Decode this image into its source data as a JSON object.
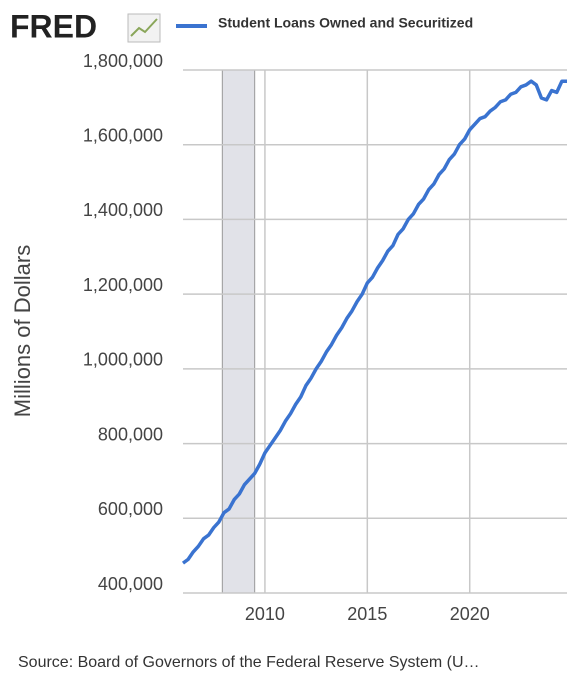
{
  "logo": "FRED",
  "chart_data": {
    "type": "line",
    "y_label": "Millions of Dollars",
    "source": "Source: Board of Governors of the Federal Reserve System (U…",
    "x": [
      2006,
      2006.25,
      2006.5,
      2006.75,
      2007,
      2007.25,
      2007.5,
      2007.75,
      2008,
      2008.25,
      2008.5,
      2008.75,
      2009,
      2009.25,
      2009.5,
      2009.75,
      2010,
      2010.25,
      2010.5,
      2010.75,
      2011,
      2011.25,
      2011.5,
      2011.75,
      2012,
      2012.25,
      2012.5,
      2012.75,
      2013,
      2013.25,
      2013.5,
      2013.75,
      2014,
      2014.25,
      2014.5,
      2014.75,
      2015,
      2015.25,
      2015.5,
      2015.75,
      2016,
      2016.25,
      2016.5,
      2016.75,
      2017,
      2017.25,
      2017.5,
      2017.75,
      2018,
      2018.25,
      2018.5,
      2018.75,
      2019,
      2019.25,
      2019.5,
      2019.75,
      2020,
      2020.25,
      2020.5,
      2020.75,
      2021,
      2021.25,
      2021.5,
      2021.75,
      2022,
      2022.25,
      2022.5,
      2022.75,
      2023,
      2023.25,
      2023.5,
      2023.75,
      2024,
      2024.25,
      2024.5,
      2024.75
    ],
    "series": [
      {
        "name": "Student Loans Owned and Securitized",
        "color": "#3a73d0",
        "values": [
          480000,
          490000,
          510000,
          525000,
          545000,
          555000,
          575000,
          590000,
          615000,
          625000,
          650000,
          665000,
          690000,
          705000,
          720000,
          745000,
          775000,
          795000,
          815000,
          835000,
          860000,
          880000,
          905000,
          925000,
          955000,
          975000,
          1000000,
          1020000,
          1045000,
          1065000,
          1090000,
          1110000,
          1135000,
          1155000,
          1180000,
          1200000,
          1230000,
          1245000,
          1270000,
          1290000,
          1315000,
          1330000,
          1360000,
          1375000,
          1400000,
          1415000,
          1440000,
          1455000,
          1480000,
          1495000,
          1520000,
          1535000,
          1560000,
          1575000,
          1600000,
          1615000,
          1640000,
          1655000,
          1670000,
          1675000,
          1690000,
          1700000,
          1715000,
          1720000,
          1735000,
          1740000,
          1755000,
          1760000,
          1770000,
          1760000,
          1725000,
          1720000,
          1745000,
          1740000,
          1770000,
          1770000
        ]
      }
    ],
    "xlim": [
      2006,
      2024.75
    ],
    "xticks": [
      2010,
      2015,
      2020
    ],
    "ylim": [
      400000,
      1800000
    ],
    "yticks": [
      {
        "value": 400000,
        "label": "400,000"
      },
      {
        "value": 600000,
        "label": "600,000"
      },
      {
        "value": 800000,
        "label": "800,000"
      },
      {
        "value": 1000000,
        "label": "1,000,000"
      },
      {
        "value": 1200000,
        "label": "1,200,000"
      },
      {
        "value": 1400000,
        "label": "1,400,000"
      },
      {
        "value": 1600000,
        "label": "1,600,000"
      },
      {
        "value": 1800000,
        "label": "1,800,000"
      }
    ],
    "shaded_periods": [
      {
        "start": 2007.92,
        "end": 2009.5
      }
    ],
    "grid": true
  }
}
